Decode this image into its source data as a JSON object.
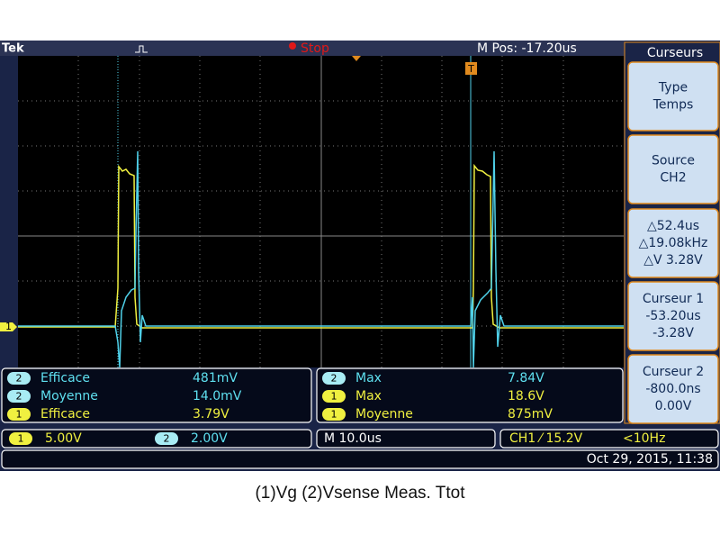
{
  "header": {
    "brand": "Tek",
    "status": "Stop",
    "position": "M Pos: -17.20us"
  },
  "markers": {
    "ch1": "1",
    "trigger": "T"
  },
  "menu": {
    "title": "Curseurs",
    "buttons": [
      [
        "Type",
        "Temps"
      ],
      [
        "Source",
        "CH2"
      ],
      [
        "△52.4us",
        "△19.08kHz",
        "△V 3.28V"
      ],
      [
        "Curseur 1",
        "-53.20us",
        "-3.28V"
      ],
      [
        "Curseur 2",
        "-800.0ns",
        "0.00V"
      ]
    ]
  },
  "measurements": {
    "left": [
      {
        "channel": "2",
        "name": "Efficace",
        "value": "481mV"
      },
      {
        "channel": "2",
        "name": "Moyenne",
        "value": "14.0mV"
      },
      {
        "channel": "1",
        "name": "Efficace",
        "value": "3.79V"
      }
    ],
    "right": [
      {
        "channel": "2",
        "name": "Max",
        "value": "7.84V"
      },
      {
        "channel": "1",
        "name": "Max",
        "value": "18.6V"
      },
      {
        "channel": "1",
        "name": "Moyenne",
        "value": "875mV"
      }
    ]
  },
  "status_bar": {
    "ch1": {
      "channel": "1",
      "scale": "5.00V"
    },
    "ch2": {
      "channel": "2",
      "scale": "2.00V"
    },
    "timebase": "M 10.0us",
    "trigger": "CH1 ⁄ 15.2V",
    "frequency": "<10Hz",
    "date": "Oct 29, 2015, 11:38"
  },
  "caption": "(1)Vg (2)Vsense Meas. Ttot"
}
